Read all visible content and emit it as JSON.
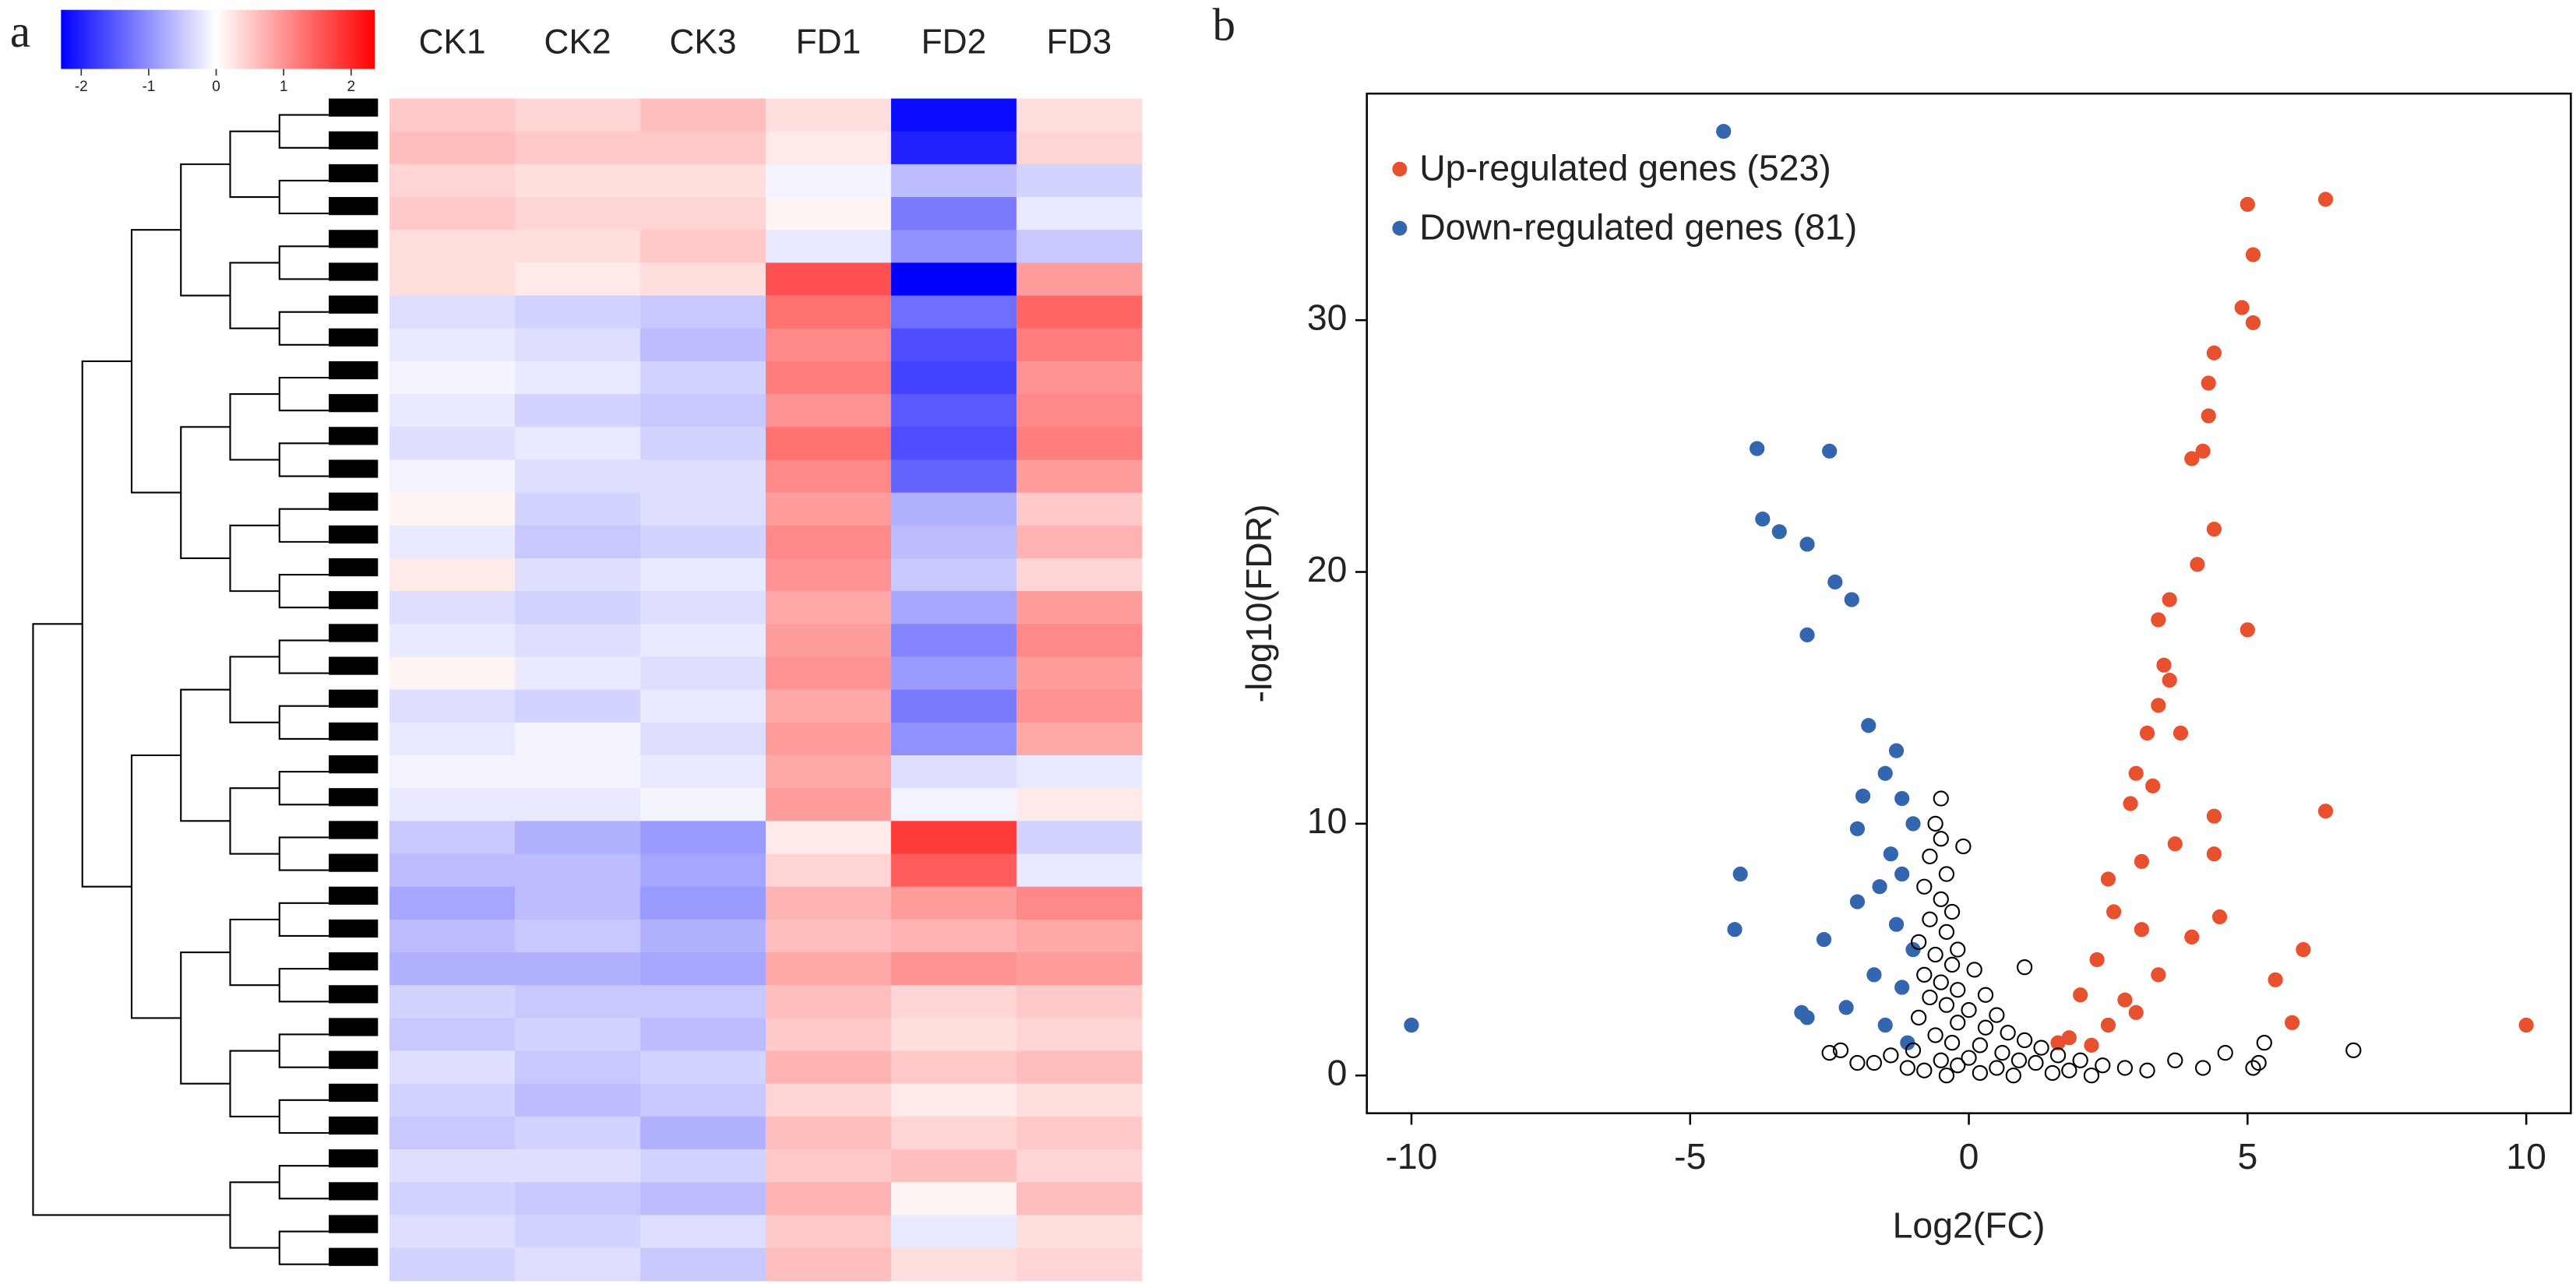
{
  "chart_data": [
    {
      "type": "heatmap",
      "panel_label": "a",
      "categories": [
        "CK1",
        "CK2",
        "CK3",
        "FD1",
        "FD2",
        "FD3"
      ],
      "values": [
        [
          0.5,
          0.4,
          0.6,
          0.3,
          -2.2,
          0.3
        ],
        [
          0.6,
          0.5,
          0.5,
          0.2,
          -2.0,
          0.4
        ],
        [
          0.4,
          0.3,
          0.3,
          -0.1,
          -0.6,
          -0.4
        ],
        [
          0.5,
          0.4,
          0.4,
          0.1,
          -1.2,
          -0.2
        ],
        [
          0.3,
          0.3,
          0.5,
          -0.2,
          -1.0,
          -0.5
        ],
        [
          0.3,
          0.2,
          0.3,
          1.6,
          -2.3,
          0.9
        ],
        [
          -0.3,
          -0.4,
          -0.5,
          1.3,
          -1.3,
          1.4
        ],
        [
          -0.2,
          -0.3,
          -0.6,
          1.1,
          -1.6,
          1.2
        ],
        [
          -0.1,
          -0.2,
          -0.4,
          1.2,
          -1.7,
          1.0
        ],
        [
          -0.2,
          -0.4,
          -0.5,
          1.0,
          -1.5,
          1.1
        ],
        [
          -0.3,
          -0.2,
          -0.4,
          1.3,
          -1.6,
          1.2
        ],
        [
          -0.1,
          -0.3,
          -0.3,
          1.1,
          -1.4,
          0.9
        ],
        [
          0.1,
          -0.4,
          -0.3,
          0.9,
          -0.7,
          0.5
        ],
        [
          -0.2,
          -0.5,
          -0.4,
          1.1,
          -0.6,
          0.7
        ],
        [
          0.2,
          -0.3,
          -0.2,
          1.0,
          -0.5,
          0.4
        ],
        [
          -0.3,
          -0.4,
          -0.3,
          0.8,
          -0.8,
          0.9
        ],
        [
          -0.2,
          -0.3,
          -0.2,
          0.9,
          -1.1,
          1.1
        ],
        [
          0.1,
          -0.2,
          -0.3,
          1.0,
          -0.9,
          0.9
        ],
        [
          -0.3,
          -0.4,
          -0.2,
          0.8,
          -1.2,
          1.0
        ],
        [
          -0.2,
          -0.1,
          -0.3,
          0.9,
          -1.0,
          0.8
        ],
        [
          -0.1,
          -0.1,
          -0.2,
          0.8,
          -0.3,
          -0.2
        ],
        [
          -0.2,
          -0.2,
          -0.1,
          0.9,
          -0.1,
          0.2
        ],
        [
          -0.5,
          -0.7,
          -0.9,
          0.2,
          1.8,
          -0.4
        ],
        [
          -0.6,
          -0.6,
          -0.8,
          0.4,
          1.5,
          -0.2
        ],
        [
          -0.8,
          -0.6,
          -0.9,
          0.7,
          0.9,
          1.1
        ],
        [
          -0.6,
          -0.5,
          -0.7,
          0.6,
          0.7,
          0.8
        ],
        [
          -0.7,
          -0.7,
          -0.8,
          0.8,
          1.0,
          0.9
        ],
        [
          -0.4,
          -0.5,
          -0.5,
          0.6,
          0.4,
          0.5
        ],
        [
          -0.5,
          -0.4,
          -0.6,
          0.5,
          0.3,
          0.4
        ],
        [
          -0.3,
          -0.5,
          -0.4,
          0.7,
          0.5,
          0.6
        ],
        [
          -0.4,
          -0.6,
          -0.5,
          0.4,
          0.2,
          0.3
        ],
        [
          -0.5,
          -0.4,
          -0.7,
          0.6,
          0.4,
          0.5
        ],
        [
          -0.3,
          -0.3,
          -0.4,
          0.5,
          0.6,
          0.4
        ],
        [
          -0.4,
          -0.5,
          -0.6,
          0.7,
          0.1,
          0.6
        ],
        [
          -0.3,
          -0.4,
          -0.3,
          0.5,
          -0.2,
          0.3
        ],
        [
          -0.4,
          -0.3,
          -0.5,
          0.6,
          0.3,
          0.4
        ]
      ],
      "colorbar": {
        "lim": [
          -2.3,
          2.35
        ],
        "ticks": [
          -2,
          -1,
          0,
          1,
          2
        ],
        "colors": [
          "#0000ff",
          "#ffffff",
          "#ff0000"
        ]
      },
      "dendrogram": true
    },
    {
      "type": "scatter",
      "panel_label": "b",
      "xlabel": "Log2(FC)",
      "ylabel": "-log10(FDR)",
      "xlim": [
        -10.8,
        10.8
      ],
      "ylim": [
        -1.5,
        39
      ],
      "xticks": [
        -10,
        -5,
        0,
        5,
        10
      ],
      "yticks": [
        0,
        10,
        20,
        30
      ],
      "legend": "upper left",
      "series": [
        {
          "name": "Up-regulated genes (523)",
          "color": "#e8502e",
          "marker": "filled",
          "x": [
            6.4,
            5.0,
            5.1,
            4.9,
            5.1,
            4.4,
            4.3,
            4.3,
            4.2,
            4.0,
            4.4,
            4.1,
            3.6,
            5.0,
            3.4,
            3.5,
            3.6,
            3.4,
            3.2,
            3.8,
            3.0,
            3.3,
            2.9,
            4.4,
            6.4,
            4.4,
            3.7,
            3.1,
            2.5,
            4.5,
            2.6,
            3.1,
            4.0,
            6.0,
            2.3,
            5.5,
            3.4,
            2.0,
            2.8,
            5.8,
            2.5,
            1.8,
            10,
            3.0,
            1.6,
            2.2
          ],
          "values": [
            34.8,
            34.6,
            32.6,
            30.5,
            29.9,
            28.7,
            27.5,
            26.2,
            24.8,
            24.5,
            21.7,
            20.3,
            18.9,
            17.7,
            18.1,
            16.3,
            15.7,
            14.7,
            13.6,
            13.6,
            12.0,
            11.5,
            10.8,
            10.3,
            10.5,
            8.8,
            9.2,
            8.5,
            7.8,
            6.3,
            6.5,
            5.8,
            5.5,
            5.0,
            4.6,
            3.8,
            4.0,
            3.2,
            3.0,
            2.1,
            2.0,
            1.5,
            2.0,
            2.5,
            1.3,
            1.2
          ]
        },
        {
          "name": "Down-regulated genes (81)",
          "color": "#3466b0",
          "marker": "filled",
          "x": [
            -4.4,
            -3.8,
            -2.5,
            -3.7,
            -3.4,
            -2.9,
            -2.4,
            -2.1,
            -2.9,
            -1.8,
            -1.3,
            -1.5,
            -1.2,
            -1.9,
            -1.0,
            -2.0,
            -1.4,
            -4.1,
            -1.2,
            -1.6,
            -2.0,
            -1.3,
            -4.2,
            -2.6,
            -1.0,
            -1.7,
            -1.2,
            -2.2,
            -2.9,
            -1.5,
            -10,
            -3.0,
            -1.1
          ],
          "values": [
            37.5,
            24.9,
            24.8,
            22.1,
            21.6,
            21.1,
            19.6,
            18.9,
            17.5,
            13.9,
            12.9,
            12.0,
            11.0,
            11.1,
            10.0,
            9.8,
            8.8,
            8.0,
            8.0,
            7.5,
            6.9,
            6.0,
            5.8,
            5.4,
            5.0,
            4.0,
            3.5,
            2.7,
            2.3,
            2.0,
            2.0,
            2.5,
            1.3
          ]
        },
        {
          "color": "#000000",
          "marker": "open",
          "x": [
            -0.6,
            -0.5,
            -0.7,
            -0.4,
            -0.8,
            -0.5,
            -0.3,
            -0.7,
            -0.4,
            -0.9,
            -0.2,
            -0.6,
            -0.3,
            0.1,
            -0.8,
            -0.5,
            -0.2,
            0.3,
            -0.7,
            -0.4,
            0.0,
            0.5,
            -0.9,
            -0.2,
            0.3,
            0.7,
            -0.6,
            1.0,
            -0.3,
            0.2,
            1.3,
            -1.0,
            0.6,
            -1.4,
            1.6,
            0.0,
            -0.5,
            0.9,
            2.0,
            -1.7,
            1.2,
            -0.2,
            2.4,
            0.5,
            -1.1,
            2.8,
            1.8,
            -0.8,
            3.2,
            0.2,
            1.5,
            -2.0,
            -2.3,
            -2.5,
            3.7,
            4.2,
            5.1,
            5.3,
            5.2,
            6.9,
            4.6,
            0.8,
            2.2,
            -0.4,
            1.0,
            -0.1,
            -0.5
          ],
          "values": [
            10.0,
            9.4,
            8.7,
            8.0,
            7.5,
            7.0,
            6.5,
            6.2,
            5.7,
            5.3,
            5.0,
            4.8,
            4.4,
            4.2,
            4.0,
            3.7,
            3.4,
            3.2,
            3.1,
            2.8,
            2.6,
            2.4,
            2.3,
            2.1,
            1.9,
            1.7,
            1.6,
            1.4,
            1.3,
            1.2,
            1.1,
            1.0,
            0.9,
            0.8,
            0.8,
            0.7,
            0.6,
            0.6,
            0.6,
            0.5,
            0.5,
            0.4,
            0.4,
            0.3,
            0.3,
            0.3,
            0.2,
            0.2,
            0.2,
            0.1,
            0.1,
            0.5,
            1.0,
            0.9,
            0.6,
            0.3,
            0.3,
            1.3,
            0.5,
            1.0,
            0.9,
            0.0,
            0.0,
            0.0,
            4.3,
            9.1,
            11.0
          ]
        }
      ]
    }
  ]
}
